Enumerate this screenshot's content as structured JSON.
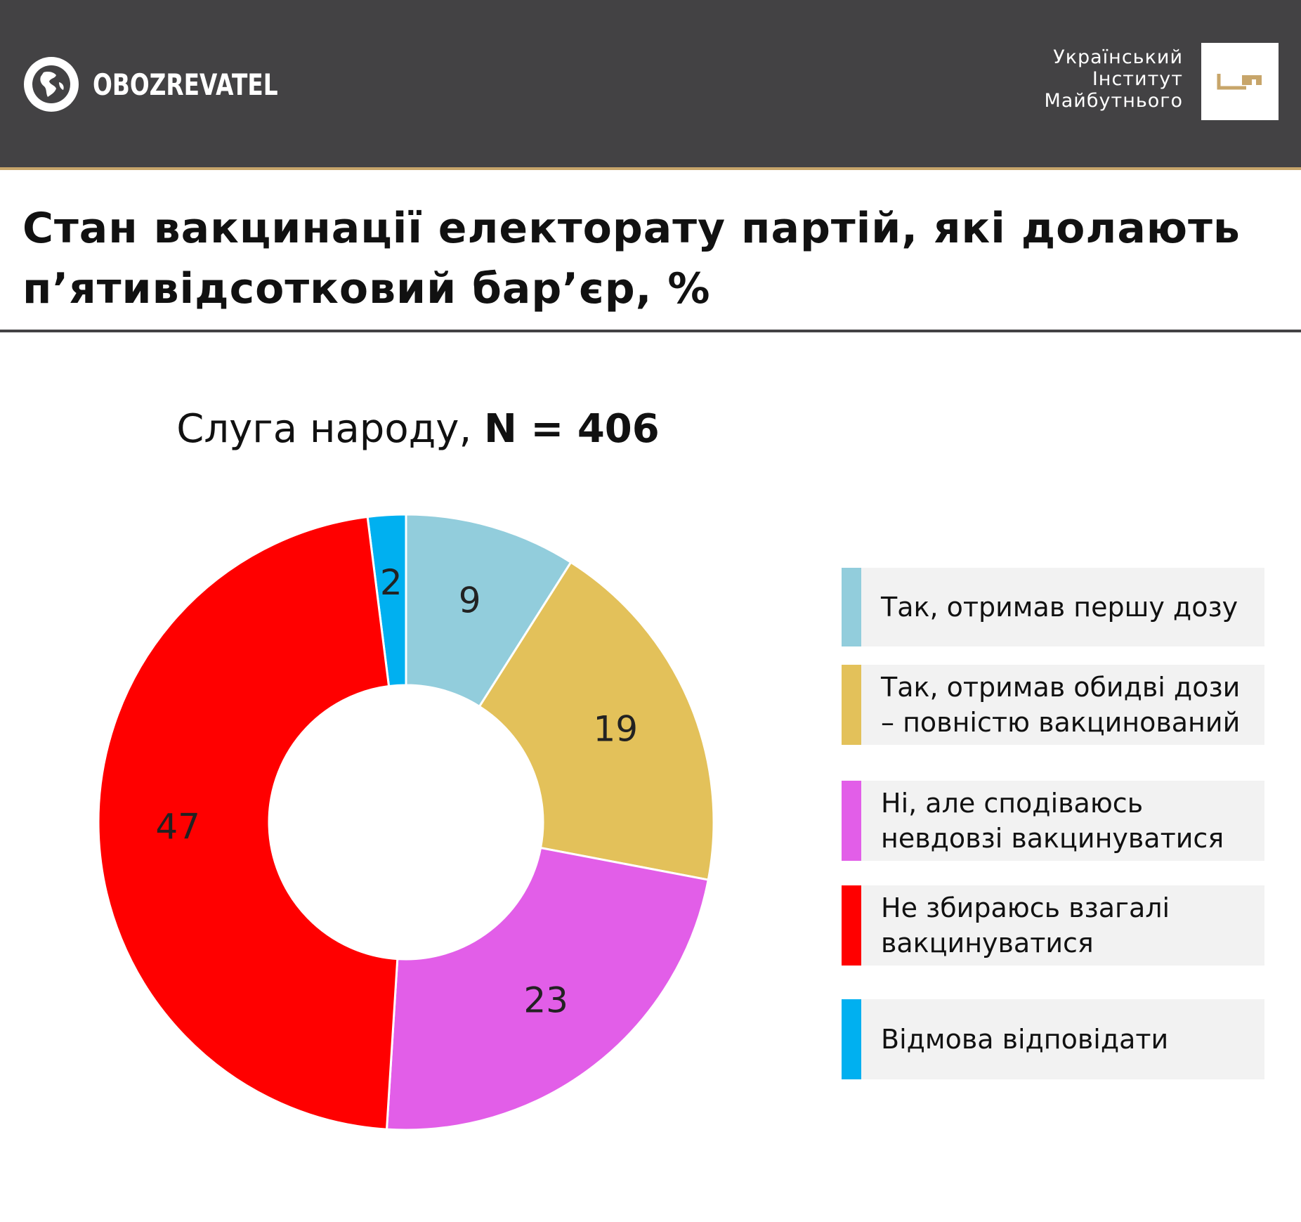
{
  "header": {
    "brand_name": "OBOZREVATEL",
    "institute": {
      "line1": "Український",
      "line2": "Інститут",
      "line3": "Майбутнього"
    },
    "bg_color": "#434244",
    "accent_color": "#c7a56a"
  },
  "title": "Стан вакцинації електорату партій, які долають п’ятивідсотковий бар’єр, %",
  "chart_title": {
    "prefix": "Слуга народу, ",
    "bold": "N = 406"
  },
  "chart_data": {
    "type": "pie",
    "variant": "donut",
    "categories": [
      "Так, отримав першу дозу",
      "Так, отримав обидві дози – повністю вакцинований",
      "Ні, але сподіваюсь невдовзі вакцинуватися",
      "Не збираюсь взагалі вакцинуватися",
      "Відмова відповідати"
    ],
    "values": [
      9,
      19,
      23,
      47,
      2
    ],
    "colors": [
      "#92cddc",
      "#e3c15a",
      "#e25ee8",
      "#ff0000",
      "#00b0f0"
    ],
    "data_labels": [
      "9",
      "19",
      "23",
      "47",
      "2"
    ],
    "legend_position": "right"
  }
}
